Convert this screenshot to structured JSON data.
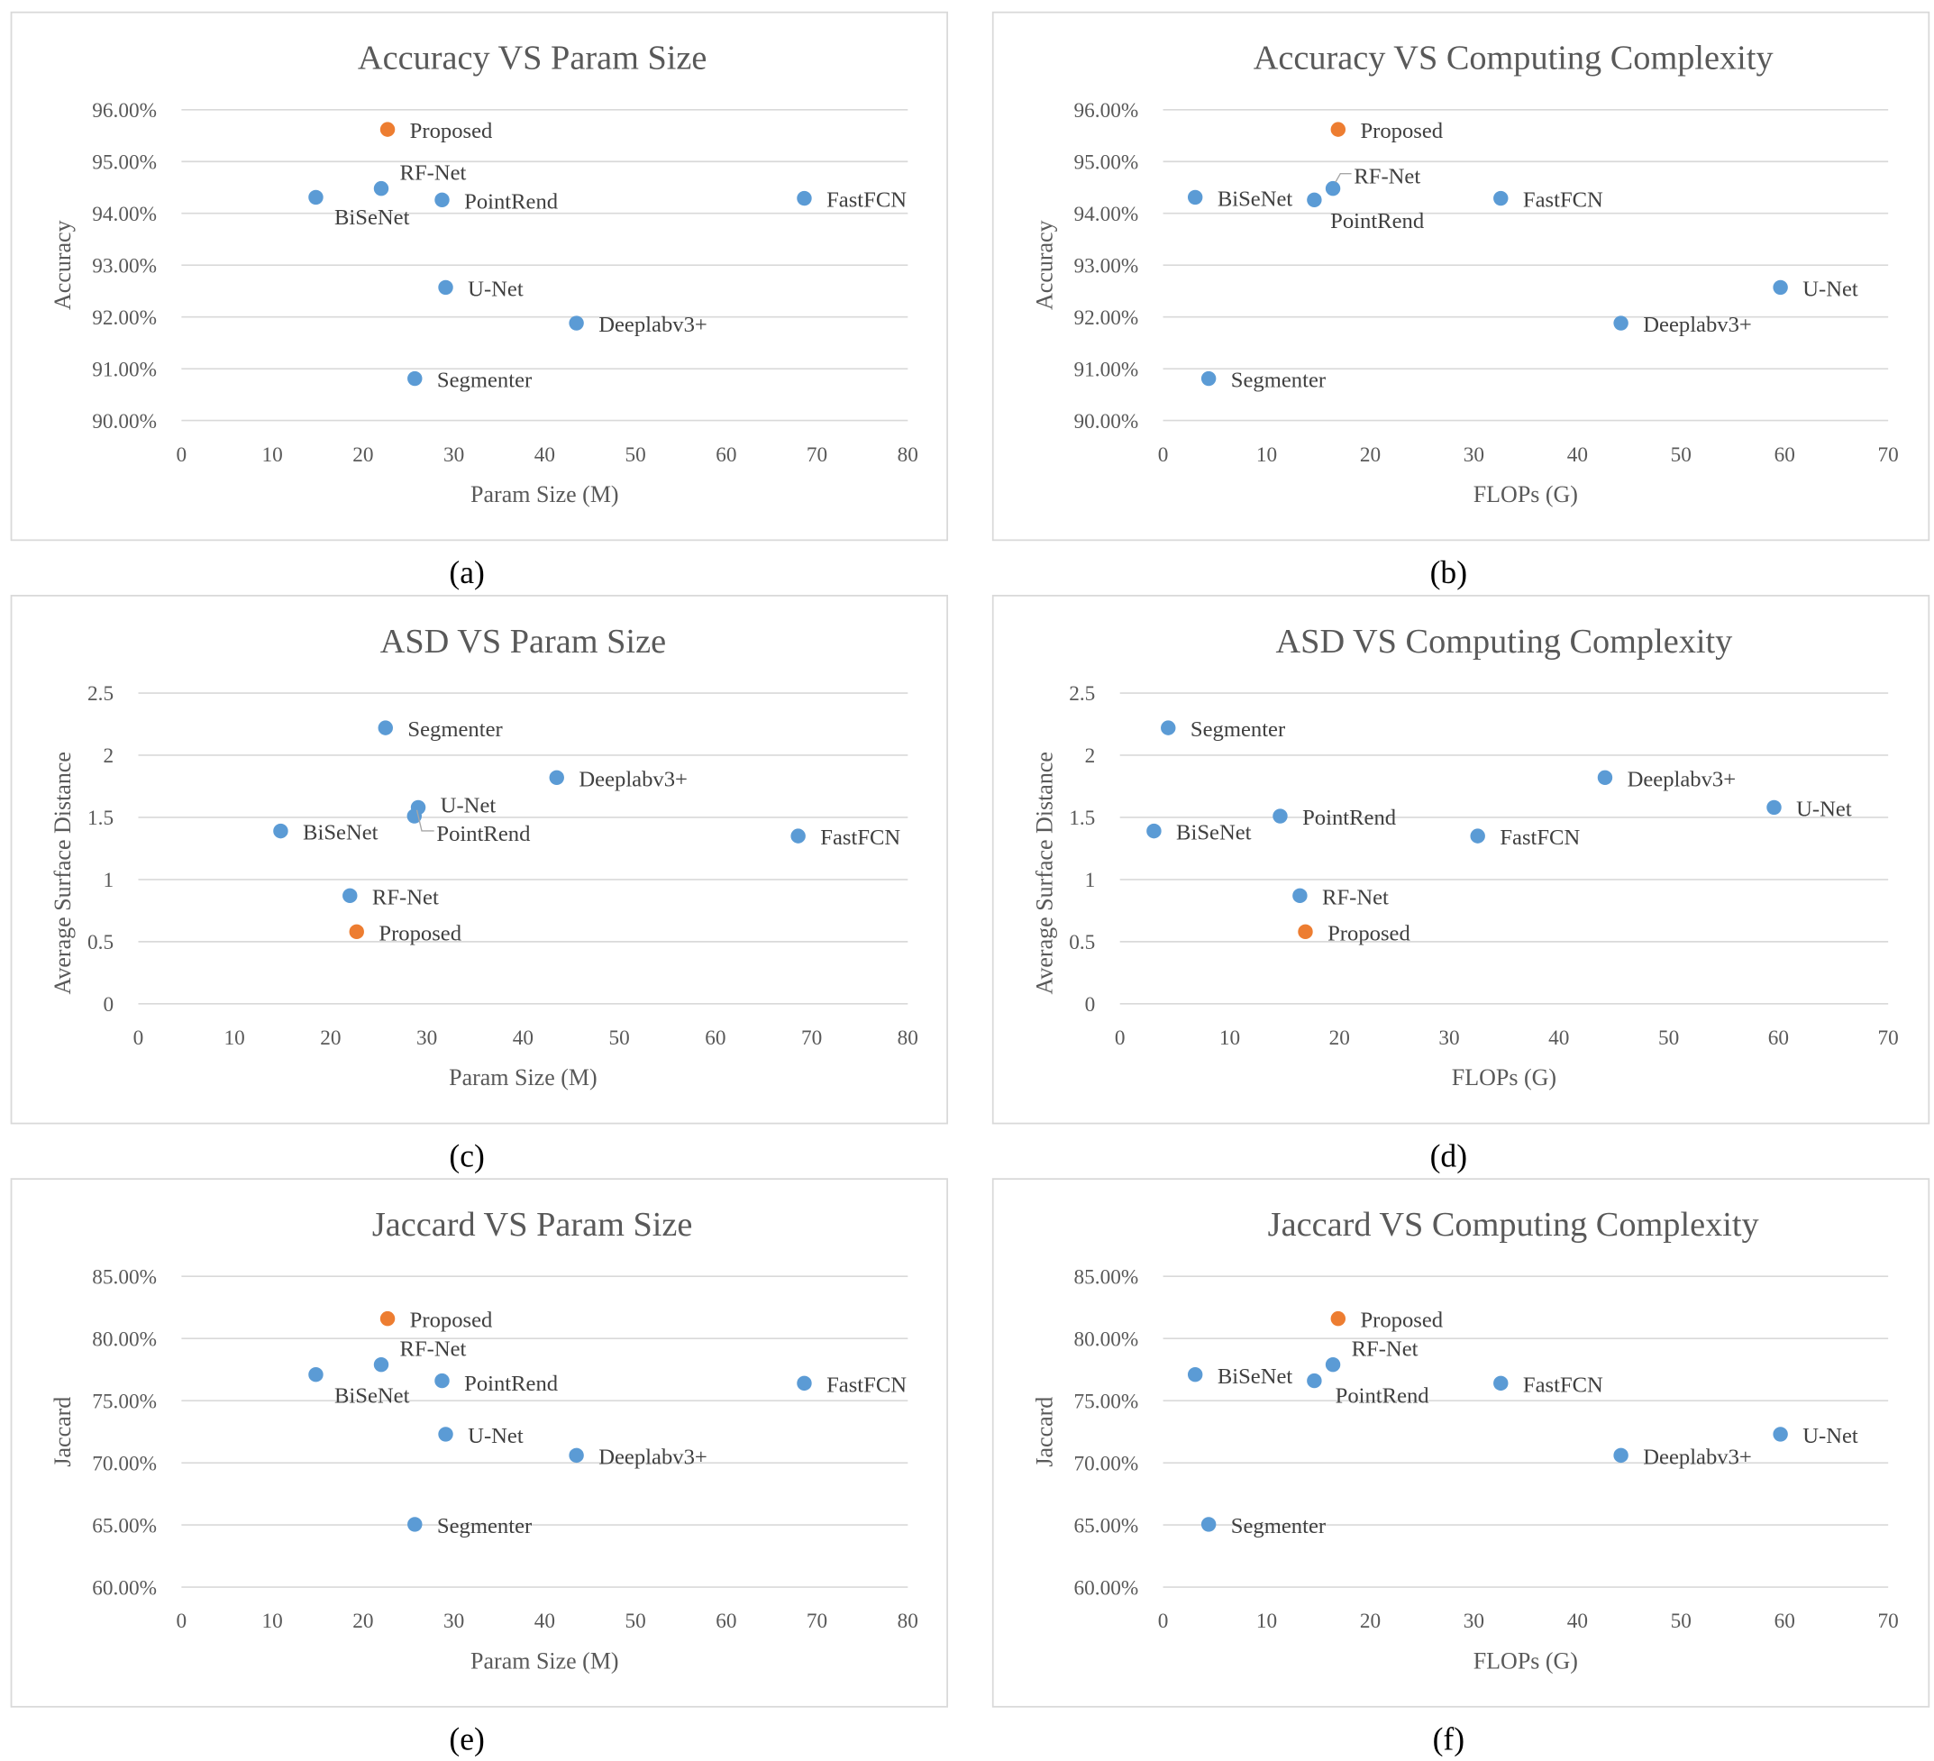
{
  "colors": {
    "series": "#5B9BD5",
    "highlight": "#ED7D31"
  },
  "chart_data": [
    {
      "type": "scatter",
      "caption": "(a)",
      "title": "Accuracy VS Param Size",
      "xlabel": "Param Size (M)",
      "ylabel": "Accuracy",
      "xlim": [
        0,
        80
      ],
      "xticks": [
        "0",
        "10",
        "20",
        "30",
        "40",
        "50",
        "60",
        "70",
        "80"
      ],
      "ylim": [
        90,
        96
      ],
      "yticks": [
        "90.00%",
        "91.00%",
        "92.00%",
        "93.00%",
        "94.00%",
        "95.00%",
        "96.00%"
      ],
      "grid": true,
      "points": [
        {
          "name": "Proposed",
          "x": 22.7,
          "y": 95.62,
          "highlight": true
        },
        {
          "name": "RF-Net",
          "x": 22.0,
          "y": 94.48
        },
        {
          "name": "BiSeNet",
          "x": 14.8,
          "y": 94.31
        },
        {
          "name": "PointRend",
          "x": 28.7,
          "y": 94.26
        },
        {
          "name": "FastFCN",
          "x": 68.6,
          "y": 94.29
        },
        {
          "name": "U-Net",
          "x": 29.1,
          "y": 92.57
        },
        {
          "name": "Deeplabv3+",
          "x": 43.5,
          "y": 91.88
        },
        {
          "name": "Segmenter",
          "x": 25.7,
          "y": 90.81
        }
      ]
    },
    {
      "type": "scatter",
      "caption": "(b)",
      "title": "Accuracy VS Computing Complexity",
      "xlabel": "FLOPs (G)",
      "ylabel": "Accuracy",
      "xlim": [
        0,
        70
      ],
      "xticks": [
        "0",
        "10",
        "20",
        "30",
        "40",
        "50",
        "60",
        "70"
      ],
      "ylim": [
        90,
        96
      ],
      "yticks": [
        "90.00%",
        "91.00%",
        "92.00%",
        "93.00%",
        "94.00%",
        "95.00%",
        "96.00%"
      ],
      "grid": true,
      "points": [
        {
          "name": "Proposed",
          "x": 16.9,
          "y": 95.62,
          "highlight": true
        },
        {
          "name": "RF-Net",
          "x": 16.4,
          "y": 94.48
        },
        {
          "name": "BiSeNet",
          "x": 3.1,
          "y": 94.31
        },
        {
          "name": "PointRend",
          "x": 14.6,
          "y": 94.26
        },
        {
          "name": "FastFCN",
          "x": 32.6,
          "y": 94.29
        },
        {
          "name": "U-Net",
          "x": 59.6,
          "y": 92.57
        },
        {
          "name": "Deeplabv3+",
          "x": 44.2,
          "y": 91.88
        },
        {
          "name": "Segmenter",
          "x": 4.4,
          "y": 90.81
        }
      ]
    },
    {
      "type": "scatter",
      "caption": "(c)",
      "title": "ASD VS Param Size",
      "xlabel": "Param Size (M)",
      "ylabel": "Average Surface Distance",
      "xlim": [
        0,
        80
      ],
      "xticks": [
        "0",
        "10",
        "20",
        "30",
        "40",
        "50",
        "60",
        "70",
        "80"
      ],
      "ylim": [
        0,
        2.5
      ],
      "yticks": [
        "0",
        "0.5",
        "1",
        "1.5",
        "2",
        "2.5"
      ],
      "grid": true,
      "points": [
        {
          "name": "Segmenter",
          "x": 25.7,
          "y": 2.22
        },
        {
          "name": "Deeplabv3+",
          "x": 43.5,
          "y": 1.82
        },
        {
          "name": "U-Net",
          "x": 29.1,
          "y": 1.58
        },
        {
          "name": "PointRend",
          "x": 28.7,
          "y": 1.51
        },
        {
          "name": "BiSeNet",
          "x": 14.8,
          "y": 1.39
        },
        {
          "name": "FastFCN",
          "x": 68.6,
          "y": 1.35
        },
        {
          "name": "RF-Net",
          "x": 22.0,
          "y": 0.87
        },
        {
          "name": "Proposed",
          "x": 22.7,
          "y": 0.58,
          "highlight": true
        }
      ]
    },
    {
      "type": "scatter",
      "caption": "(d)",
      "title": "ASD VS Computing Complexity",
      "xlabel": "FLOPs (G)",
      "ylabel": "Average Surface Distance",
      "xlim": [
        0,
        70
      ],
      "xticks": [
        "0",
        "10",
        "20",
        "30",
        "40",
        "50",
        "60",
        "70"
      ],
      "ylim": [
        0,
        2.5
      ],
      "yticks": [
        "0",
        "0.5",
        "1",
        "1.5",
        "2",
        "2.5"
      ],
      "grid": true,
      "points": [
        {
          "name": "Segmenter",
          "x": 4.4,
          "y": 2.22
        },
        {
          "name": "Deeplabv3+",
          "x": 44.2,
          "y": 1.82
        },
        {
          "name": "U-Net",
          "x": 59.6,
          "y": 1.58
        },
        {
          "name": "PointRend",
          "x": 14.6,
          "y": 1.51
        },
        {
          "name": "BiSeNet",
          "x": 3.1,
          "y": 1.39
        },
        {
          "name": "FastFCN",
          "x": 32.6,
          "y": 1.35
        },
        {
          "name": "RF-Net",
          "x": 16.4,
          "y": 0.87
        },
        {
          "name": "Proposed",
          "x": 16.9,
          "y": 0.58,
          "highlight": true
        }
      ]
    },
    {
      "type": "scatter",
      "caption": "(e)",
      "title": "Jaccard VS Param Size",
      "xlabel": "Param Size (M)",
      "ylabel": "Jaccard",
      "xlim": [
        0,
        80
      ],
      "xticks": [
        "0",
        "10",
        "20",
        "30",
        "40",
        "50",
        "60",
        "70",
        "80"
      ],
      "ylim": [
        60,
        85
      ],
      "yticks": [
        "60.00%",
        "65.00%",
        "70.00%",
        "75.00%",
        "80.00%",
        "85.00%"
      ],
      "grid": true,
      "points": [
        {
          "name": "Proposed",
          "x": 22.7,
          "y": 81.6,
          "highlight": true
        },
        {
          "name": "RF-Net",
          "x": 22.0,
          "y": 77.9
        },
        {
          "name": "BiSeNet",
          "x": 14.8,
          "y": 77.1
        },
        {
          "name": "PointRend",
          "x": 28.7,
          "y": 76.6
        },
        {
          "name": "FastFCN",
          "x": 68.6,
          "y": 76.4
        },
        {
          "name": "U-Net",
          "x": 29.1,
          "y": 72.3
        },
        {
          "name": "Deeplabv3+",
          "x": 43.5,
          "y": 70.6
        },
        {
          "name": "Segmenter",
          "x": 25.7,
          "y": 65.05
        }
      ]
    },
    {
      "type": "scatter",
      "caption": "(f)",
      "title": "Jaccard VS Computing Complexity",
      "xlabel": "FLOPs (G)",
      "ylabel": "Jaccard",
      "xlim": [
        0,
        70
      ],
      "xticks": [
        "0",
        "10",
        "20",
        "30",
        "40",
        "50",
        "60",
        "70"
      ],
      "ylim": [
        60,
        85
      ],
      "yticks": [
        "60.00%",
        "65.00%",
        "70.00%",
        "75.00%",
        "80.00%",
        "85.00%"
      ],
      "grid": true,
      "points": [
        {
          "name": "Proposed",
          "x": 16.9,
          "y": 81.6,
          "highlight": true
        },
        {
          "name": "RF-Net",
          "x": 16.4,
          "y": 77.9
        },
        {
          "name": "BiSeNet",
          "x": 3.1,
          "y": 77.1
        },
        {
          "name": "PointRend",
          "x": 14.6,
          "y": 76.6
        },
        {
          "name": "FastFCN",
          "x": 32.6,
          "y": 76.4
        },
        {
          "name": "U-Net",
          "x": 59.6,
          "y": 72.3
        },
        {
          "name": "Deeplabv3+",
          "x": 44.2,
          "y": 70.6
        },
        {
          "name": "Segmenter",
          "x": 4.4,
          "y": 65.05
        }
      ]
    }
  ]
}
